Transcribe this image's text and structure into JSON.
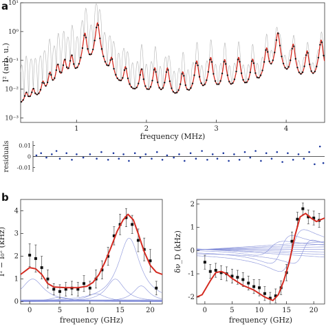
{
  "chart_data": [
    {
      "panel": "a",
      "type": "line",
      "yscale": "log",
      "xlabel": "frequency (MHz)",
      "ylabel": "I² (arb. u.)",
      "xlim": [
        0.2,
        4.55
      ],
      "ylim": [
        0.0007,
        10
      ],
      "xticks": [
        "1",
        "2",
        "3",
        "4"
      ],
      "yticks": [
        "10⁻³",
        "10⁻²",
        "10⁻¹",
        "10⁰",
        "10¹"
      ],
      "peaks": [
        {
          "f": 0.28,
          "amp": 0.004
        },
        {
          "f": 0.38,
          "amp": 0.006
        },
        {
          "f": 0.52,
          "amp": 0.012
        },
        {
          "f": 0.62,
          "amp": 0.03
        },
        {
          "f": 0.73,
          "amp": 0.06
        },
        {
          "f": 0.83,
          "amp": 0.09
        },
        {
          "f": 0.93,
          "amp": 0.13
        },
        {
          "f": 1.12,
          "amp": 0.85
        },
        {
          "f": 1.3,
          "amp": 2.0
        },
        {
          "f": 1.5,
          "amp": 0.1
        },
        {
          "f": 1.7,
          "amp": 0.05
        },
        {
          "f": 1.93,
          "amp": 0.045
        },
        {
          "f": 2.12,
          "amp": 0.05
        },
        {
          "f": 2.3,
          "amp": 0.05
        },
        {
          "f": 2.52,
          "amp": 0.035
        },
        {
          "f": 2.72,
          "amp": 0.09
        },
        {
          "f": 2.92,
          "amp": 0.12
        },
        {
          "f": 3.12,
          "amp": 0.1
        },
        {
          "f": 3.32,
          "amp": 0.12
        },
        {
          "f": 3.52,
          "amp": 0.1
        },
        {
          "f": 3.72,
          "amp": 0.25
        },
        {
          "f": 3.88,
          "amp": 0.9
        },
        {
          "f": 4.1,
          "amp": 0.35
        },
        {
          "f": 4.3,
          "amp": 0.2
        },
        {
          "f": 4.5,
          "amp": 0.5
        }
      ],
      "background": 0.0012
    },
    {
      "panel": "a-residuals",
      "type": "scatter",
      "ylabel": "residuals",
      "yticks": [
        "0.01",
        "0",
        "-0.01"
      ],
      "ylim": [
        -0.014,
        0.014
      ],
      "xlim": [
        0.2,
        4.55
      ],
      "points": [
        [
          0.25,
          0.001
        ],
        [
          0.32,
          0.003
        ],
        [
          0.4,
          -0.001
        ],
        [
          0.48,
          0.002
        ],
        [
          0.55,
          0.005
        ],
        [
          0.6,
          -0.002
        ],
        [
          0.7,
          0.003
        ],
        [
          0.78,
          -0.003
        ],
        [
          0.85,
          0.002
        ],
        [
          0.95,
          -0.001
        ],
        [
          1.05,
          0.002
        ],
        [
          1.15,
          -0.002
        ],
        [
          1.22,
          0.004
        ],
        [
          1.32,
          -0.003
        ],
        [
          1.4,
          0.003
        ],
        [
          1.48,
          -0.002
        ],
        [
          1.55,
          0.002
        ],
        [
          1.63,
          -0.004
        ],
        [
          1.72,
          0.003
        ],
        [
          1.8,
          -0.001
        ],
        [
          1.88,
          0.002
        ],
        [
          1.97,
          -0.002
        ],
        [
          2.05,
          0.004
        ],
        [
          2.13,
          -0.003
        ],
        [
          2.2,
          0.001
        ],
        [
          2.3,
          -0.001
        ],
        [
          2.38,
          0.002
        ],
        [
          2.46,
          -0.004
        ],
        [
          2.55,
          0.003
        ],
        [
          2.63,
          -0.002
        ],
        [
          2.72,
          0.005
        ],
        [
          2.8,
          -0.003
        ],
        [
          2.88,
          0.002
        ],
        [
          2.95,
          -0.002
        ],
        [
          3.04,
          0.003
        ],
        [
          3.12,
          -0.004
        ],
        [
          3.2,
          0.002
        ],
        [
          3.28,
          -0.003
        ],
        [
          3.36,
          0.004
        ],
        [
          3.44,
          -0.001
        ],
        [
          3.52,
          0.005
        ],
        [
          3.6,
          -0.004
        ],
        [
          3.68,
          0.003
        ],
        [
          3.76,
          -0.002
        ],
        [
          3.84,
          0.004
        ],
        [
          3.92,
          -0.005
        ],
        [
          4.0,
          0.003
        ],
        [
          4.08,
          -0.003
        ],
        [
          4.16,
          0.002
        ],
        [
          4.24,
          -0.002
        ],
        [
          4.32,
          0.004
        ],
        [
          4.4,
          -0.007
        ],
        [
          4.48,
          0.009
        ],
        [
          4.53,
          -0.006
        ]
      ]
    },
    {
      "panel": "b-left",
      "type": "line",
      "xlabel": "frequency (GHz)",
      "ylabel": "I² − I₀² (kHz)",
      "xlim": [
        -1.5,
        22
      ],
      "ylim": [
        -0.1,
        4.5
      ],
      "xticks": [
        "0",
        "5",
        "10",
        "15",
        "20"
      ],
      "yticks": [
        "0",
        "1",
        "2",
        "3",
        "4"
      ],
      "fit": [
        [
          -1.5,
          1.2
        ],
        [
          -0.5,
          1.4
        ],
        [
          0,
          1.5
        ],
        [
          1,
          1.45
        ],
        [
          2,
          1.2
        ],
        [
          3,
          0.8
        ],
        [
          4,
          0.65
        ],
        [
          6,
          0.62
        ],
        [
          8,
          0.62
        ],
        [
          9.5,
          0.68
        ],
        [
          10.5,
          0.85
        ],
        [
          11.5,
          1.2
        ],
        [
          12.5,
          1.75
        ],
        [
          13.5,
          2.4
        ],
        [
          14.5,
          3.1
        ],
        [
          15.5,
          3.6
        ],
        [
          16.3,
          3.85
        ],
        [
          17.2,
          3.6
        ],
        [
          18,
          3.0
        ],
        [
          19,
          2.2
        ],
        [
          20,
          1.6
        ],
        [
          21,
          1.3
        ],
        [
          22,
          1.2
        ]
      ],
      "points": [
        [
          0,
          2.05,
          0.5
        ],
        [
          1,
          1.9,
          0.6
        ],
        [
          2,
          1.5,
          0.5
        ],
        [
          3,
          1.0,
          0.4
        ],
        [
          4,
          0.55,
          0.25
        ],
        [
          5,
          0.45,
          0.3
        ],
        [
          6,
          0.55,
          0.3
        ],
        [
          7,
          0.6,
          0.3
        ],
        [
          8,
          0.55,
          0.3
        ],
        [
          9,
          0.8,
          0.35
        ],
        [
          10,
          0.6,
          0.3
        ],
        [
          11,
          1.0,
          0.4
        ],
        [
          12,
          1.4,
          0.4
        ],
        [
          13,
          2.0,
          0.4
        ],
        [
          14,
          2.9,
          0.4
        ],
        [
          15,
          3.4,
          0.45
        ],
        [
          16,
          3.7,
          0.4
        ],
        [
          17,
          3.4,
          0.4
        ],
        [
          18,
          2.7,
          0.5
        ],
        [
          19,
          2.3,
          0.5
        ],
        [
          20,
          1.8,
          0.5
        ],
        [
          21,
          0.6,
          0.3
        ]
      ]
    },
    {
      "panel": "b-right",
      "type": "line",
      "xlabel": "frequency (GHz)",
      "ylabel": "δν_D (kHz)",
      "xlim": [
        -1.5,
        22
      ],
      "ylim": [
        -2.3,
        2.2
      ],
      "xticks": [
        "0",
        "5",
        "10",
        "15",
        "20"
      ],
      "yticks": [
        "-2",
        "-1",
        "0",
        "1",
        "2"
      ],
      "fit": [
        [
          -1.5,
          -2.0
        ],
        [
          -0.5,
          -1.9
        ],
        [
          1,
          -1.3
        ],
        [
          2,
          -0.95
        ],
        [
          3,
          -0.9
        ],
        [
          4,
          -1.0
        ],
        [
          5,
          -1.2
        ],
        [
          7,
          -1.5
        ],
        [
          9,
          -1.7
        ],
        [
          11,
          -2.0
        ],
        [
          12.5,
          -2.15
        ],
        [
          13.5,
          -1.9
        ],
        [
          14.5,
          -1.3
        ],
        [
          15.5,
          -0.5
        ],
        [
          16.5,
          0.6
        ],
        [
          17.5,
          1.45
        ],
        [
          18.5,
          1.6
        ],
        [
          19.5,
          1.4
        ],
        [
          20.5,
          1.25
        ],
        [
          22,
          1.4
        ]
      ],
      "points": [
        [
          0,
          -0.5,
          0.3
        ],
        [
          1,
          -0.9,
          0.3
        ],
        [
          2,
          -0.85,
          0.3
        ],
        [
          3,
          -0.95,
          0.3
        ],
        [
          4,
          -1.0,
          0.3
        ],
        [
          5,
          -1.1,
          0.3
        ],
        [
          6,
          -1.15,
          0.3
        ],
        [
          7,
          -1.25,
          0.3
        ],
        [
          8,
          -1.4,
          0.3
        ],
        [
          9,
          -1.55,
          0.3
        ],
        [
          10,
          -1.6,
          0.35
        ],
        [
          11,
          -1.85,
          0.3
        ],
        [
          12,
          -2.05,
          0.25
        ],
        [
          13,
          -1.95,
          0.3
        ],
        [
          14,
          -1.6,
          0.3
        ],
        [
          15,
          -0.95,
          0.35
        ],
        [
          16,
          0.4,
          0.4
        ],
        [
          17,
          1.35,
          0.3
        ],
        [
          18,
          1.8,
          0.25
        ],
        [
          19,
          1.45,
          0.3
        ],
        [
          20,
          1.4,
          0.3
        ],
        [
          21,
          1.3,
          0.3
        ]
      ]
    }
  ],
  "labels": {
    "panel_a": "a",
    "panel_b": "b"
  },
  "colors": {
    "fit": "#d42a20",
    "data": "#111111",
    "residual": "#1f3a9e",
    "components": "#7b86d6",
    "raw": "#a0a0a0"
  }
}
